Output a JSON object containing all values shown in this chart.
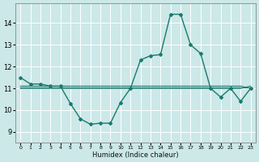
{
  "bg_color": "#cce8e8",
  "grid_color": "#ffffff",
  "line_color": "#1a7a6e",
  "xlabel": "Humidex (Indice chaleur)",
  "xlim": [
    -0.5,
    23.5
  ],
  "ylim": [
    8.5,
    14.9
  ],
  "yticks": [
    9,
    10,
    11,
    12,
    13,
    14
  ],
  "xticks": [
    0,
    1,
    2,
    3,
    4,
    5,
    6,
    7,
    8,
    9,
    10,
    11,
    12,
    13,
    14,
    15,
    16,
    17,
    18,
    19,
    20,
    21,
    22,
    23
  ],
  "series": [
    {
      "x": [
        0,
        1,
        2,
        3,
        4,
        5,
        6,
        7,
        8,
        9,
        10,
        11,
        12,
        13,
        14,
        15,
        16,
        17,
        18,
        19,
        20,
        21,
        22,
        23
      ],
      "y": [
        11.5,
        11.2,
        11.2,
        11.1,
        11.1,
        10.3,
        9.6,
        9.35,
        9.4,
        9.4,
        10.35,
        11.0,
        12.3,
        12.5,
        12.55,
        14.4,
        14.4,
        13.0,
        12.6,
        11.0,
        10.6,
        11.0,
        10.4,
        11.0
      ],
      "marker": true,
      "lw": 1.0
    },
    {
      "x": [
        0,
        1,
        2,
        3,
        4,
        5,
        6,
        7,
        8,
        9,
        10,
        11,
        12,
        13,
        14,
        15,
        16,
        17,
        18,
        19,
        20,
        21,
        22,
        23
      ],
      "y": [
        11.1,
        11.1,
        11.1,
        11.1,
        11.1,
        11.1,
        11.1,
        11.1,
        11.1,
        11.1,
        11.1,
        11.1,
        11.1,
        11.1,
        11.1,
        11.1,
        11.1,
        11.1,
        11.1,
        11.1,
        11.1,
        11.1,
        11.1,
        11.0
      ],
      "marker": false,
      "lw": 0.8
    },
    {
      "x": [
        0,
        1,
        2,
        3,
        4,
        5,
        6,
        7,
        8,
        9,
        10,
        11,
        12,
        13,
        14,
        15,
        16,
        17,
        18,
        19,
        20,
        21,
        22,
        23
      ],
      "y": [
        11.05,
        11.05,
        11.05,
        11.05,
        11.05,
        11.05,
        11.05,
        11.05,
        11.05,
        11.05,
        11.05,
        11.05,
        11.05,
        11.05,
        11.05,
        11.05,
        11.05,
        11.05,
        11.05,
        11.05,
        11.05,
        11.05,
        11.05,
        11.05
      ],
      "marker": false,
      "lw": 0.8
    },
    {
      "x": [
        0,
        1,
        2,
        3,
        4,
        5,
        6,
        7,
        8,
        9,
        10,
        11,
        12,
        13,
        14,
        15,
        16,
        17,
        18,
        19,
        20,
        21,
        22,
        23
      ],
      "y": [
        11.0,
        11.0,
        11.0,
        11.0,
        11.0,
        11.0,
        11.0,
        11.0,
        11.0,
        11.0,
        11.0,
        11.0,
        11.0,
        11.0,
        11.0,
        11.0,
        11.0,
        11.0,
        11.0,
        11.0,
        11.0,
        11.0,
        11.0,
        11.1
      ],
      "marker": false,
      "lw": 0.8
    }
  ]
}
